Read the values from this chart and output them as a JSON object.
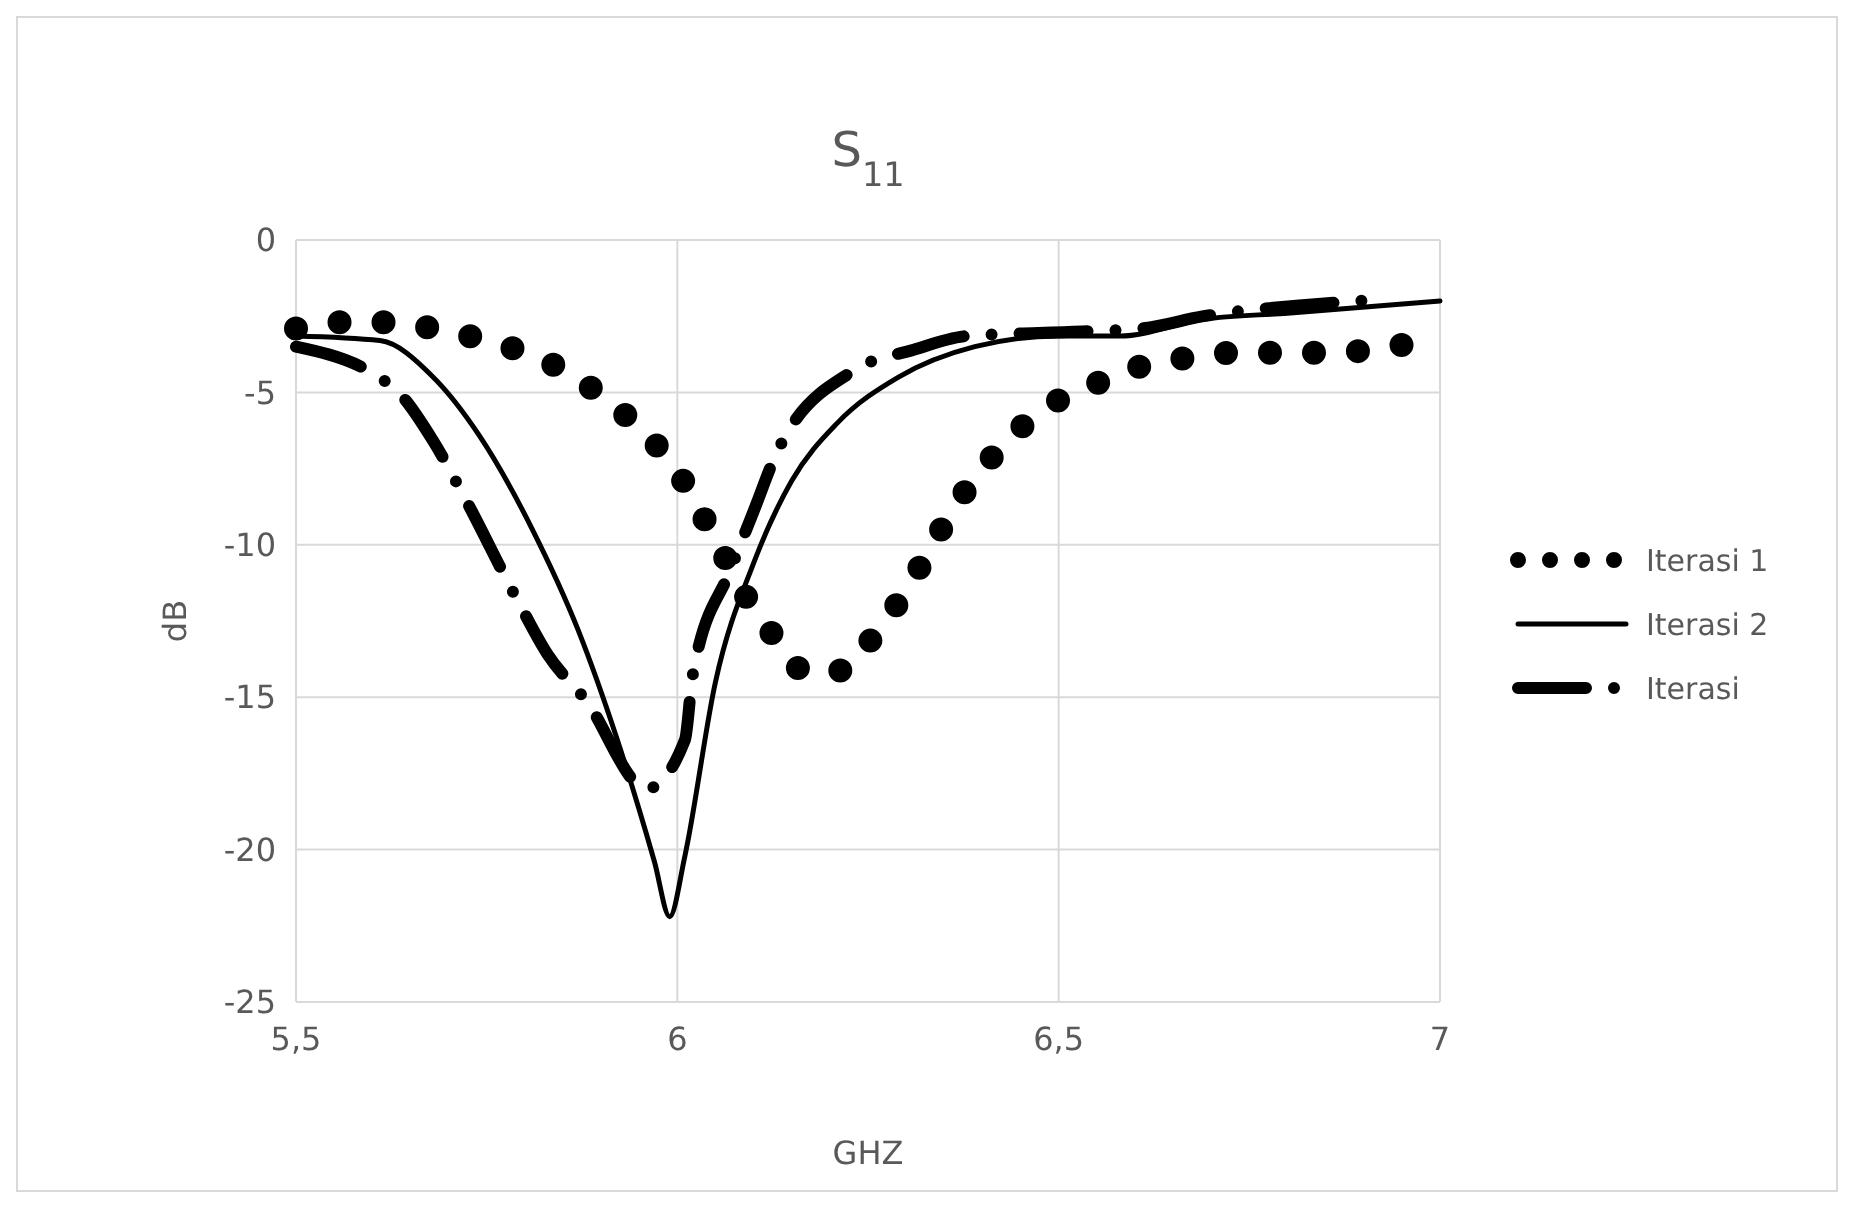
{
  "chart_data": {
    "type": "line",
    "title": "S$_{11}$",
    "xlabel": "GHZ",
    "ylabel": "dB",
    "xlim": [
      5.5,
      7
    ],
    "xticks": [
      {
        "value": 5.5,
        "label": "5,5"
      },
      6,
      {
        "value": 6.5,
        "label": "6,5"
      },
      7
    ],
    "ylim": [
      -25,
      0
    ],
    "yticks": [
      -25,
      -20,
      -15,
      -10,
      -5,
      0
    ],
    "grid": true,
    "legend": "right",
    "series": [
      {
        "name": "Iterasi 1",
        "color": "#000000",
        "line_style": "dotted",
        "x": [
          5.5,
          5.56,
          5.62,
          5.68,
          5.75,
          5.8,
          5.86,
          5.91,
          5.96,
          6.0,
          6.03,
          6.06,
          6.09,
          6.13,
          6.17,
          6.22,
          6.26,
          6.3,
          6.33,
          6.36,
          6.4,
          6.44,
          6.49,
          6.55,
          6.6,
          6.66,
          6.73,
          6.79,
          6.85,
          6.91,
          6.98
        ],
        "values": [
          -2.9,
          -2.7,
          -2.7,
          -2.9,
          -3.3,
          -3.7,
          -4.4,
          -5.3,
          -6.4,
          -7.6,
          -8.9,
          -10.3,
          -11.7,
          -13.1,
          -14.2,
          -14.1,
          -12.9,
          -11.5,
          -10.2,
          -8.9,
          -7.5,
          -6.4,
          -5.4,
          -4.7,
          -4.2,
          -3.9,
          -3.7,
          -3.7,
          -3.7,
          -3.6,
          -3.3
        ]
      },
      {
        "name": "Iterasi 2",
        "color": "#000000",
        "line_style": "solid",
        "x": [
          5.5,
          5.61,
          5.68,
          5.74,
          5.81,
          5.87,
          5.92,
          5.97,
          5.99,
          6.01,
          6.05,
          6.1,
          6.15,
          6.21,
          6.29,
          6.39,
          6.5,
          6.58,
          6.69,
          6.8,
          7.0
        ],
        "values": [
          -3.15,
          -3.3,
          -4.5,
          -6.4,
          -9.5,
          -12.8,
          -16.3,
          -20.4,
          -22.2,
          -20.2,
          -14.5,
          -10.6,
          -7.9,
          -6.0,
          -4.5,
          -3.5,
          -3.15,
          -3.15,
          -2.6,
          -2.4,
          -2.0
        ]
      },
      {
        "name": "Iterasi",
        "color": "#000000",
        "line_style": "dashed",
        "x": [
          5.5,
          5.63,
          5.68,
          5.72,
          5.79,
          5.83,
          5.88,
          5.96,
          6.01,
          6.02,
          6.07,
          6.1,
          6.13,
          6.23,
          6.31,
          6.38,
          6.53,
          6.61,
          6.69,
          6.84,
          6.92
        ],
        "values": [
          -3.5,
          -4.9,
          -6.6,
          -8.4,
          -11.8,
          -13.6,
          -15.1,
          -18.0,
          -16.4,
          -14.3,
          -10.8,
          -8.9,
          -7.0,
          -4.3,
          -3.6,
          -3.15,
          -3.0,
          -2.9,
          -2.5,
          -2.1,
          -1.95
        ]
      }
    ]
  }
}
